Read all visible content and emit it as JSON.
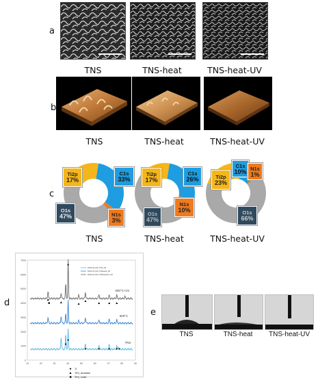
{
  "panels": {
    "a": "a",
    "b": "b",
    "c": "c",
    "d": "d",
    "e": "e"
  },
  "samples": [
    "TNS",
    "TNS-heat",
    "TNS-heat-UV"
  ],
  "panel_e_labels": [
    "TNS",
    "TNS-heat",
    "TNS-heat-UV"
  ],
  "donuts": [
    {
      "segments": [
        {
          "label": "Ti2p",
          "pct": "17%",
          "value": 17,
          "color": "#f5b61b"
        },
        {
          "label": "C1s",
          "pct": "33%",
          "value": 33,
          "color": "#1e9de0"
        },
        {
          "label": "N1s",
          "pct": "3%",
          "value": 3,
          "color": "#f07a1c"
        },
        {
          "label": "O1s",
          "pct": "47%",
          "value": 47,
          "color": "#a9a9a9"
        }
      ]
    },
    {
      "segments": [
        {
          "label": "Ti2p",
          "pct": "17%",
          "value": 17,
          "color": "#f5b61b"
        },
        {
          "label": "C1s",
          "pct": "26%",
          "value": 26,
          "color": "#1e9de0"
        },
        {
          "label": "N1s",
          "pct": "10%",
          "value": 10,
          "color": "#f07a1c"
        },
        {
          "label": "O1s",
          "pct": "47%",
          "value": 47,
          "color": "#a9a9a9"
        }
      ]
    },
    {
      "segments": [
        {
          "label": "Ti2p",
          "pct": "23%",
          "value": 23,
          "color": "#f5b61b"
        },
        {
          "label": "C1s",
          "pct": "10%",
          "value": 10,
          "color": "#1e9de0"
        },
        {
          "label": "N1s",
          "pct": "1%",
          "value": 1,
          "color": "#f07a1c"
        },
        {
          "label": "O1s",
          "pct": "66%",
          "value": 66,
          "color": "#a9a9a9"
        }
      ]
    }
  ],
  "xrd": {
    "traces": [
      "600°C+UV",
      "600°C",
      "TNS"
    ],
    "legend": [
      "DW4-04 (10) TNS_09",
      "DW4-04 (10) TNSHeat_09",
      "DW4-04 (10) TNSHeatUV_09"
    ],
    "marker_legend": [
      {
        "symbol": "●",
        "text": "Ti"
      },
      {
        "symbol": "▲",
        "text": "TiO₂ anatase"
      },
      {
        "symbol": "■",
        "text": "TiO₂ rutile"
      }
    ]
  },
  "chart_data": {
    "type": "line",
    "series": [
      {
        "name": "DW4-04 (10) TNS_09"
      },
      {
        "name": "DW4-04 (10) TNSHeat_09"
      },
      {
        "name": "DW4-04 (10) TNSHeatUV_09"
      }
    ],
    "xlim": [
      10,
      90
    ],
    "x_ticks": [
      "10",
      "20",
      "30",
      "40",
      "50",
      "60",
      "70",
      "80",
      "90"
    ],
    "y_ticks": [
      "0",
      "1000",
      "2000",
      "3000",
      "4000",
      "5000",
      "6000",
      "7000"
    ],
    "trace_labels": [
      "600°C+UV",
      "600°C",
      "TNS"
    ]
  }
}
